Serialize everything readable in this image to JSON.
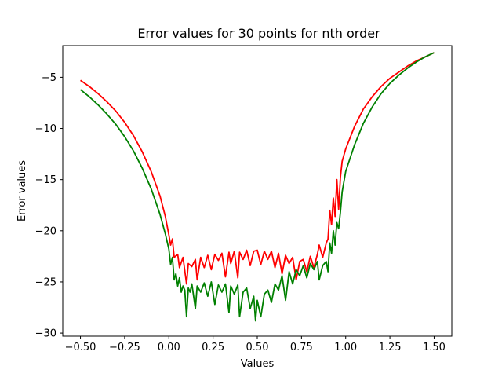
{
  "chart_data": {
    "type": "line",
    "title": "Error values for 30 points for nth order",
    "xlabel": "Values",
    "ylabel": "Error values",
    "xlim": [
      -0.6,
      1.6
    ],
    "ylim": [
      -30.3,
      -1.9
    ],
    "grid": false,
    "legend": "none",
    "xticks": [
      -0.5,
      -0.25,
      0.0,
      0.25,
      0.5,
      0.75,
      1.0,
      1.25,
      1.5
    ],
    "xtick_labels": [
      "−0.50",
      "−0.25",
      "0.00",
      "0.25",
      "0.50",
      "0.75",
      "1.00",
      "1.25",
      "1.50"
    ],
    "yticks": [
      -30,
      -25,
      -20,
      -15,
      -10,
      -5
    ],
    "ytick_labels": [
      "−30",
      "−25",
      "−20",
      "−15",
      "−10",
      "−5"
    ],
    "series": [
      {
        "color": "#ff0000",
        "x": [
          -0.5,
          -0.45,
          -0.4,
          -0.35,
          -0.3,
          -0.25,
          -0.2,
          -0.15,
          -0.1,
          -0.05,
          -0.02,
          0.0,
          0.01,
          0.02,
          0.03,
          0.05,
          0.06,
          0.08,
          0.1,
          0.11,
          0.13,
          0.15,
          0.16,
          0.18,
          0.2,
          0.22,
          0.24,
          0.26,
          0.28,
          0.3,
          0.32,
          0.34,
          0.35,
          0.37,
          0.39,
          0.4,
          0.42,
          0.44,
          0.46,
          0.48,
          0.5,
          0.52,
          0.54,
          0.56,
          0.58,
          0.6,
          0.62,
          0.64,
          0.66,
          0.68,
          0.7,
          0.72,
          0.74,
          0.76,
          0.78,
          0.8,
          0.82,
          0.84,
          0.85,
          0.87,
          0.89,
          0.9,
          0.91,
          0.92,
          0.93,
          0.94,
          0.95,
          0.96,
          0.97,
          0.98,
          1.0,
          1.05,
          1.1,
          1.15,
          1.2,
          1.25,
          1.3,
          1.35,
          1.4,
          1.45,
          1.5
        ],
        "y": [
          -5.3,
          -5.9,
          -6.6,
          -7.4,
          -8.3,
          -9.4,
          -10.7,
          -12.3,
          -14.2,
          -16.6,
          -18.6,
          -20.4,
          -21.4,
          -20.8,
          -22.6,
          -22.3,
          -23.6,
          -22.6,
          -25.2,
          -23.2,
          -23.5,
          -22.8,
          -24.8,
          -22.6,
          -23.6,
          -22.4,
          -23.8,
          -22.3,
          -22.9,
          -22.2,
          -24.5,
          -22.1,
          -23.2,
          -22.0,
          -24.6,
          -22.1,
          -22.8,
          -21.9,
          -23.4,
          -22.0,
          -21.9,
          -23.3,
          -22.0,
          -22.8,
          -22.0,
          -23.6,
          -22.2,
          -24.2,
          -22.4,
          -23.2,
          -22.6,
          -24.8,
          -23.0,
          -22.8,
          -24.0,
          -22.5,
          -23.6,
          -22.3,
          -21.4,
          -22.6,
          -21.2,
          -20.8,
          -18.0,
          -19.4,
          -16.8,
          -18.6,
          -15.0,
          -17.9,
          -14.8,
          -13.2,
          -12.0,
          -9.8,
          -8.1,
          -6.9,
          -5.9,
          -5.1,
          -4.5,
          -3.9,
          -3.4,
          -3.0,
          -2.6
        ]
      },
      {
        "color": "#008000",
        "x": [
          -0.5,
          -0.45,
          -0.4,
          -0.35,
          -0.3,
          -0.25,
          -0.2,
          -0.15,
          -0.1,
          -0.05,
          -0.02,
          0.0,
          0.01,
          0.02,
          0.03,
          0.04,
          0.05,
          0.06,
          0.07,
          0.08,
          0.09,
          0.1,
          0.11,
          0.12,
          0.13,
          0.15,
          0.16,
          0.18,
          0.2,
          0.22,
          0.24,
          0.26,
          0.28,
          0.3,
          0.32,
          0.34,
          0.35,
          0.37,
          0.39,
          0.4,
          0.42,
          0.44,
          0.46,
          0.48,
          0.49,
          0.5,
          0.52,
          0.54,
          0.56,
          0.58,
          0.6,
          0.62,
          0.64,
          0.66,
          0.68,
          0.7,
          0.72,
          0.74,
          0.76,
          0.78,
          0.8,
          0.82,
          0.84,
          0.85,
          0.87,
          0.89,
          0.9,
          0.91,
          0.92,
          0.93,
          0.94,
          0.95,
          0.96,
          0.97,
          0.98,
          1.0,
          1.05,
          1.1,
          1.15,
          1.2,
          1.25,
          1.3,
          1.35,
          1.4,
          1.45,
          1.5
        ],
        "y": [
          -6.2,
          -6.9,
          -7.7,
          -8.6,
          -9.6,
          -10.8,
          -12.2,
          -13.9,
          -15.9,
          -18.4,
          -20.3,
          -21.8,
          -23.3,
          -22.6,
          -24.8,
          -24.2,
          -25.4,
          -24.6,
          -26.0,
          -25.4,
          -25.8,
          -28.4,
          -25.6,
          -26.0,
          -25.2,
          -27.6,
          -25.4,
          -26.0,
          -25.1,
          -26.4,
          -25.0,
          -27.2,
          -25.3,
          -26.0,
          -25.2,
          -28.0,
          -25.4,
          -26.2,
          -25.3,
          -28.4,
          -26.0,
          -25.6,
          -27.6,
          -26.4,
          -28.8,
          -26.8,
          -28.4,
          -26.2,
          -25.8,
          -27.0,
          -25.2,
          -25.8,
          -24.4,
          -26.8,
          -24.0,
          -25.2,
          -23.8,
          -24.4,
          -23.4,
          -24.6,
          -23.2,
          -23.8,
          -23.0,
          -24.8,
          -23.4,
          -23.0,
          -24.0,
          -21.2,
          -22.2,
          -20.0,
          -21.4,
          -19.2,
          -19.8,
          -18.2,
          -16.2,
          -14.2,
          -11.6,
          -9.5,
          -7.9,
          -6.6,
          -5.6,
          -4.8,
          -4.1,
          -3.5,
          -3.0,
          -2.6
        ]
      }
    ]
  }
}
